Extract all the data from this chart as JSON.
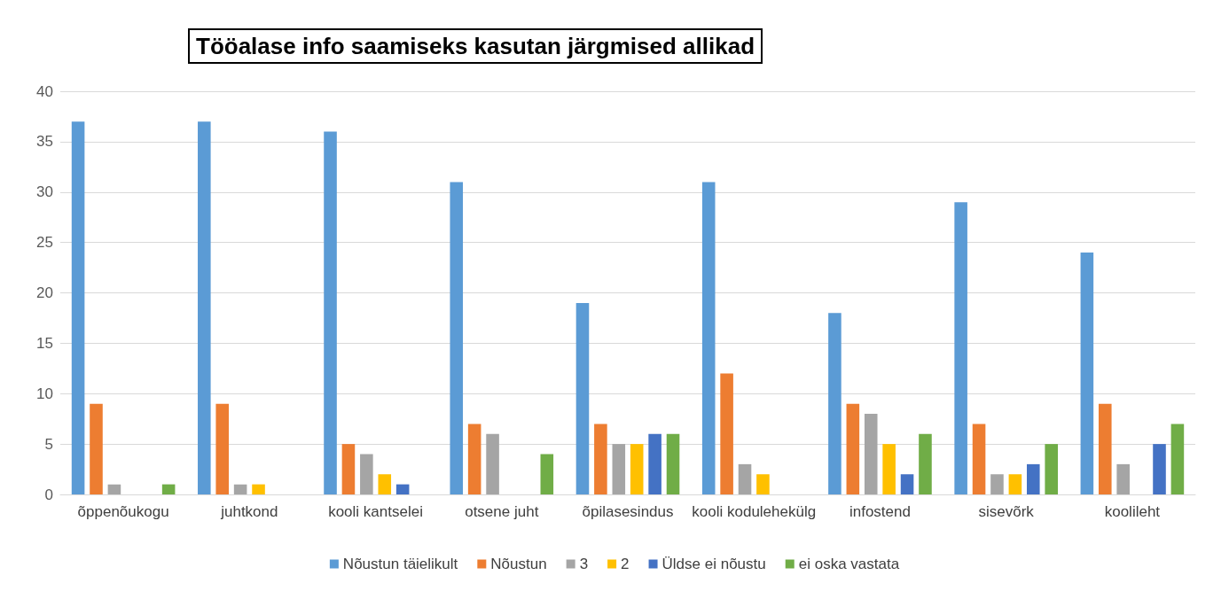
{
  "chart_data": {
    "type": "bar",
    "title": "Tööalase info saamiseks kasutan järgmised allikad",
    "categories": [
      "õppenõukogu",
      "juhtkond",
      "kooli kantselei",
      "otsene juht",
      "õpilasesindus",
      "kooli kodulehekülg",
      "infostend",
      "sisevõrk",
      "koolileht"
    ],
    "series": [
      {
        "name": "Nõustun täielikult",
        "color": "#5b9bd5",
        "values": [
          37,
          37,
          36,
          31,
          19,
          31,
          18,
          29,
          24
        ]
      },
      {
        "name": "Nõustun",
        "color": "#ed7d31",
        "values": [
          9,
          9,
          5,
          7,
          7,
          12,
          9,
          7,
          9
        ]
      },
      {
        "name": "3",
        "color": "#a5a5a5",
        "values": [
          1,
          1,
          4,
          6,
          5,
          3,
          8,
          2,
          3
        ]
      },
      {
        "name": "2",
        "color": "#ffc000",
        "values": [
          0,
          1,
          2,
          0,
          5,
          2,
          5,
          2,
          0
        ]
      },
      {
        "name": "Üldse ei nõustu",
        "color": "#4472c4",
        "values": [
          0,
          0,
          1,
          0,
          6,
          0,
          2,
          3,
          5
        ]
      },
      {
        "name": "ei oska vastata",
        "color": "#70ad47",
        "values": [
          1,
          0,
          0,
          4,
          6,
          0,
          6,
          5,
          7
        ]
      }
    ],
    "ylim": [
      0,
      40
    ],
    "yticks": [
      0,
      5,
      10,
      15,
      20,
      25,
      30,
      35,
      40
    ],
    "grid": "y",
    "legend": "bottom"
  }
}
